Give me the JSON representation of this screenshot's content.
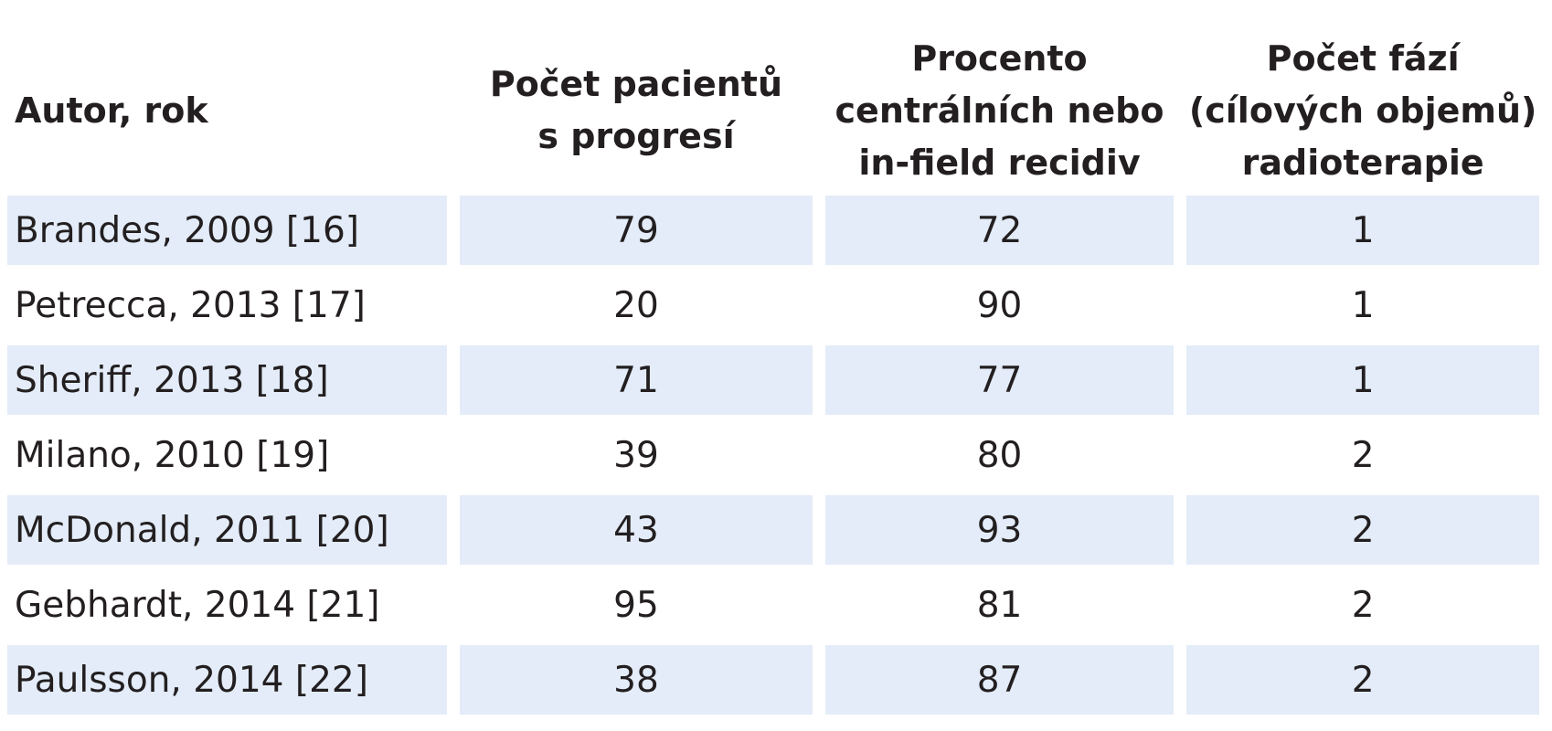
{
  "headers": [
    {
      "lines": [
        "Autor, rok"
      ]
    },
    {
      "lines": [
        "Počet pacientů",
        "s progresí"
      ]
    },
    {
      "lines": [
        "Procento",
        "centrálních nebo",
        "in-field recidiv"
      ]
    },
    {
      "lines": [
        "Počet fází",
        "(cílových objemů)",
        "radioterapie"
      ]
    }
  ],
  "rows": [
    {
      "author": "Brandes, 2009 [16]",
      "patients": "79",
      "percent": "72",
      "phases": "1"
    },
    {
      "author": "Petrecca, 2013 [17]",
      "patients": "20",
      "percent": "90",
      "phases": "1"
    },
    {
      "author": "Sheriff, 2013 [18]",
      "patients": "71",
      "percent": "77",
      "phases": "1"
    },
    {
      "author": "Milano, 2010 [19]",
      "patients": "39",
      "percent": "80",
      "phases": "2"
    },
    {
      "author": "McDonald, 2011 [20]",
      "patients": "43",
      "percent": "93",
      "phases": "2"
    },
    {
      "author": "Gebhardt, 2014 [21]",
      "patients": "95",
      "percent": "81",
      "phases": "2"
    },
    {
      "author": "Paulsson, 2014 [22]",
      "patients": "38",
      "percent": "87",
      "phases": "2"
    }
  ],
  "colors": {
    "row_fill": "#e3ecf8",
    "text": "#231f20"
  }
}
